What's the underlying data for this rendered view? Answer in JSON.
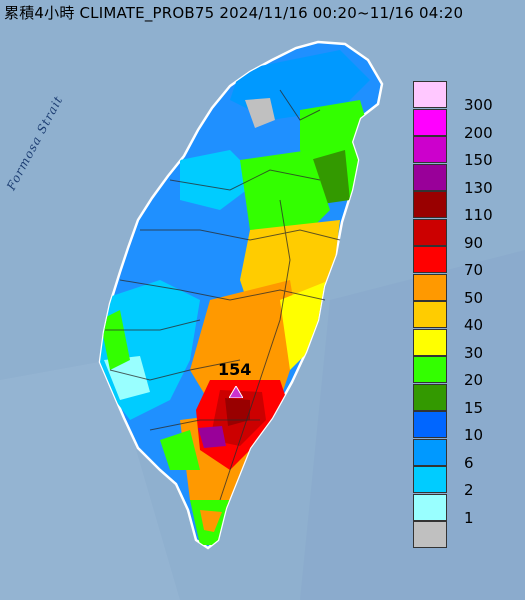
{
  "title": "累積4小時 CLIMATE_PROB75 2024/11/16 00:20~11/16 04:20",
  "strait_label": "Formosa Strait",
  "max_marker": {
    "value": "154",
    "color": "#cc33cc"
  },
  "legend": {
    "colors": [
      "#ffc8ff",
      "#ff00ff",
      "#cc00cc",
      "#990099",
      "#990000",
      "#cc0000",
      "#ff0000",
      "#ff9900",
      "#ffcc00",
      "#ffff00",
      "#33ff00",
      "#339900",
      "#0066ff",
      "#0099ff",
      "#00ccff",
      "#99ffff",
      "#c0c0c0"
    ],
    "labels": [
      "300",
      "200",
      "150",
      "130",
      "110",
      "90",
      "70",
      "50",
      "40",
      "30",
      "20",
      "15",
      "10",
      "6",
      "2",
      "1"
    ]
  },
  "colors": {
    "sea": "#8fb0cf"
  }
}
